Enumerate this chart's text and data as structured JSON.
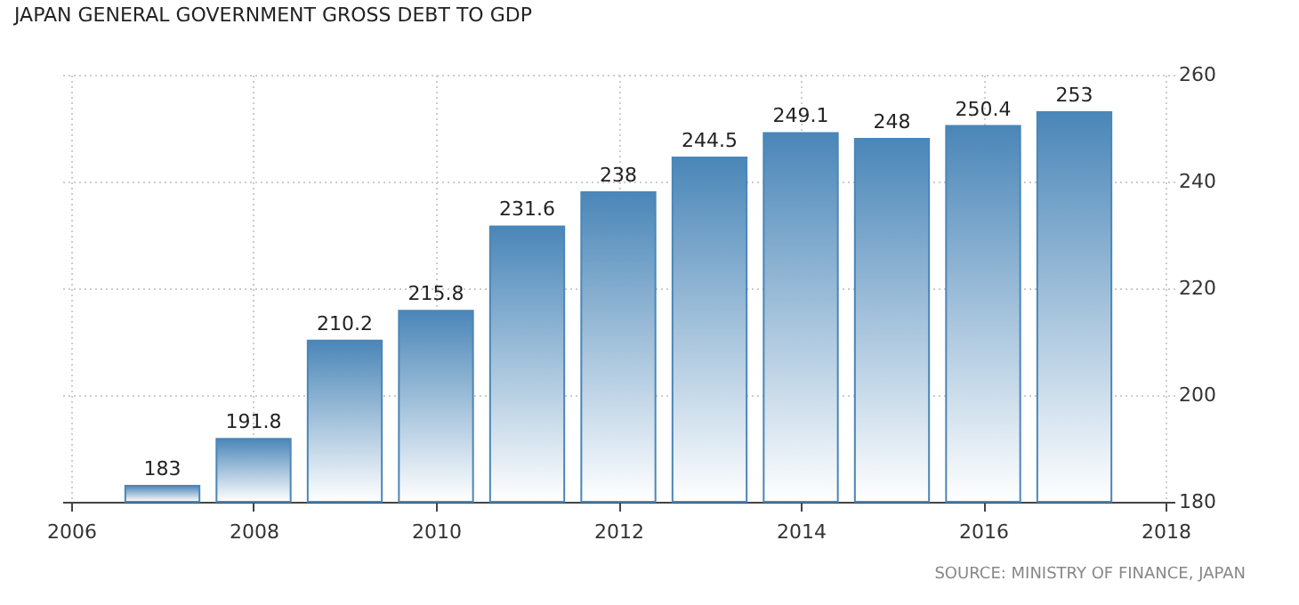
{
  "chart_data": {
    "type": "bar",
    "title": "JAPAN GENERAL GOVERNMENT GROSS DEBT TO GDP",
    "x": [
      2007,
      2008,
      2009,
      2010,
      2011,
      2012,
      2013,
      2014,
      2015,
      2016,
      2017
    ],
    "values": [
      183,
      191.8,
      210.2,
      215.8,
      231.6,
      238,
      244.5,
      249.1,
      248,
      250.4,
      253
    ],
    "color": "#4a86b8",
    "xlim": [
      2006,
      2018
    ],
    "xticks": [
      2006,
      2008,
      2010,
      2012,
      2014,
      2016,
      2018
    ],
    "ylim": [
      180,
      260
    ],
    "yticks": [
      180,
      200,
      220,
      240,
      260
    ],
    "grid": true,
    "data_labels": true,
    "annotations": [
      "SOURCE: MINISTRY OF FINANCE, JAPAN"
    ]
  }
}
